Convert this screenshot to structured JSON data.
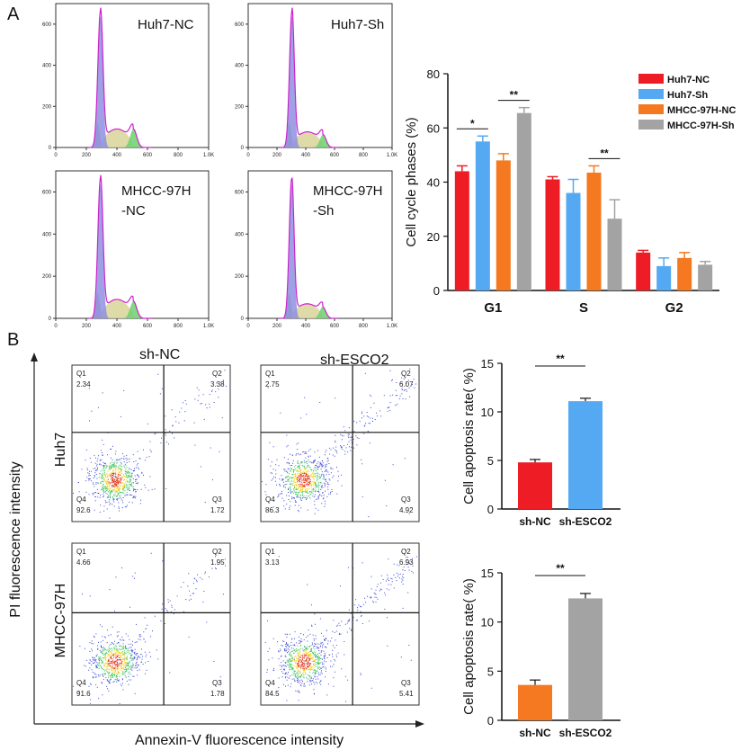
{
  "panel_labels": {
    "a": "A",
    "b": "B"
  },
  "histograms": {
    "x_ticks": [
      "0",
      "200",
      "400",
      "600",
      "800",
      "1.0K"
    ],
    "y_ticks": [
      "0",
      "200",
      "400",
      "600"
    ],
    "panels": [
      {
        "label_lines": [
          "Huh7-NC"
        ]
      },
      {
        "label_lines": [
          "Huh7-Sh"
        ]
      },
      {
        "label_lines": [
          "MHCC-97H",
          "-NC"
        ]
      },
      {
        "label_lines": [
          "MHCC-97H",
          "-Sh"
        ]
      }
    ]
  },
  "flow": {
    "col_headers": [
      "sh-NC",
      "sh-ESCO2"
    ],
    "row_headers": [
      "Huh7",
      "MHCC-97H"
    ],
    "y_axis_label": "PI fluorescence intensity",
    "x_axis_label": "Annexin-V fluorescence intensity",
    "quadrant_names": [
      "Q1",
      "Q2",
      "Q3",
      "Q4"
    ],
    "plots": [
      {
        "q1": "2.34",
        "q2": "3.38",
        "q3": "1.72",
        "q4": "92.6"
      },
      {
        "q1": "2.75",
        "q2": "6.07",
        "q3": "4.92",
        "q4": "86.3"
      },
      {
        "q1": "4.66",
        "q2": "1.95",
        "q3": "1.78",
        "q4": "91.6"
      },
      {
        "q1": "3.13",
        "q2": "6.93",
        "q3": "5.41",
        "q4": "84.5"
      }
    ]
  },
  "colors": {
    "red": "#ee1c25",
    "blue": "#55a9f2",
    "orange": "#f47920",
    "gray": "#a3a3a3"
  },
  "chart_data": [
    {
      "type": "bar",
      "title": "",
      "xlabel": "",
      "ylabel": "Cell cycle phases (%)",
      "categories": [
        "G1",
        "S",
        "G2"
      ],
      "ylim": [
        0,
        80
      ],
      "yticks": [
        "0",
        "20",
        "40",
        "60",
        "80"
      ],
      "series": [
        {
          "name": "Huh7-NC",
          "color": "#ee1c25",
          "values": [
            44,
            41,
            14
          ],
          "errors": [
            2,
            1,
            0.8
          ]
        },
        {
          "name": "Huh7-Sh",
          "color": "#55a9f2",
          "values": [
            55,
            36,
            9
          ],
          "errors": [
            2,
            5,
            3
          ]
        },
        {
          "name": "MHCC-97H-NC",
          "color": "#f47920",
          "values": [
            48,
            43.5,
            12
          ],
          "errors": [
            2.5,
            2.5,
            2
          ]
        },
        {
          "name": "MHCC-97H-Sh",
          "color": "#a3a3a3",
          "values": [
            65.5,
            26.5,
            9.5
          ],
          "errors": [
            2,
            7,
            1.2
          ]
        }
      ],
      "annotations": [
        {
          "text": "*",
          "category": "G1",
          "from_series": 0,
          "to_series": 1
        },
        {
          "text": "**",
          "category": "G1",
          "from_series": 2,
          "to_series": 3
        },
        {
          "text": "**",
          "category": "S",
          "from_series": 2,
          "to_series": 3
        }
      ]
    },
    {
      "type": "bar",
      "title": "",
      "xlabel": "",
      "ylabel": "Cell apoptosis rate( %)",
      "categories": [
        "sh-NC",
        "sh-ESCO2"
      ],
      "values": [
        4.8,
        11.1
      ],
      "errors": [
        0.3,
        0.3
      ],
      "colors": [
        "#ee1c25",
        "#55a9f2"
      ],
      "ylim": [
        0,
        15
      ],
      "yticks": [
        "0",
        "5",
        "10",
        "15"
      ],
      "significance": "**"
    },
    {
      "type": "bar",
      "title": "",
      "xlabel": "",
      "ylabel": "Cell apoptosis rate( %)",
      "categories": [
        "sh-NC",
        "sh-ESCO2"
      ],
      "values": [
        3.6,
        12.4
      ],
      "errors": [
        0.5,
        0.5
      ],
      "colors": [
        "#f47920",
        "#a3a3a3"
      ],
      "ylim": [
        0,
        15
      ],
      "yticks": [
        "0",
        "5",
        "10",
        "15"
      ],
      "significance": "**"
    }
  ]
}
